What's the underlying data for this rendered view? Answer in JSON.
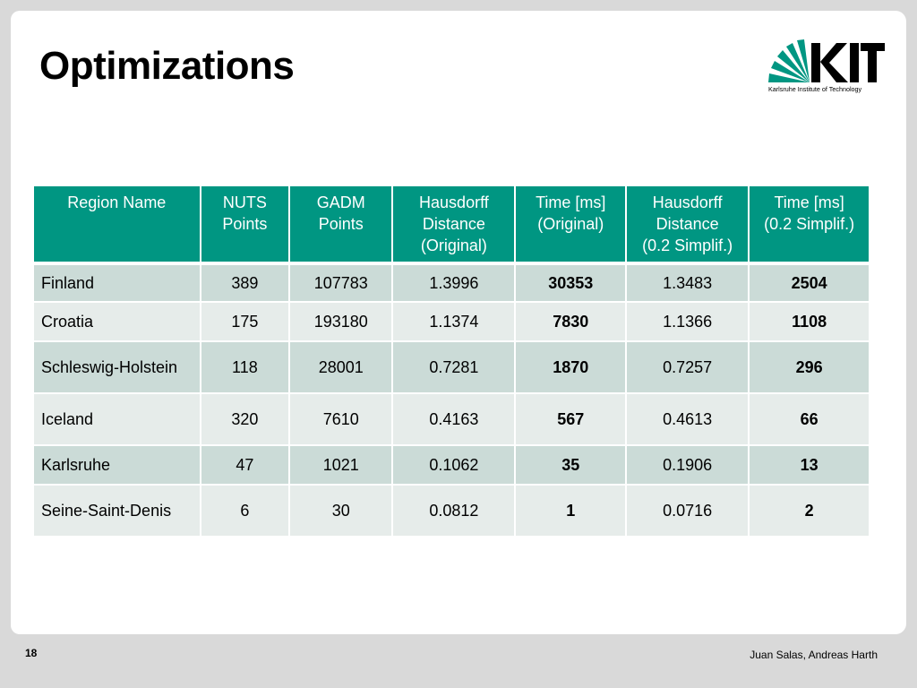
{
  "slide": {
    "title": "Optimizations",
    "page_number": "18",
    "authors": "Juan Salas, Andreas Harth"
  },
  "logo": {
    "text": "KIT",
    "subtitle": "Karlsruhe Institute of Technology",
    "color": "#009682"
  },
  "table": {
    "headers": [
      [
        "Region Name"
      ],
      [
        "NUTS",
        "Points"
      ],
      [
        "GADM",
        "Points"
      ],
      [
        "Hausdorff",
        "Distance",
        "(Original)"
      ],
      [
        "Time [ms]",
        "(Original)"
      ],
      [
        "Hausdorff",
        "Distance",
        "(0.2 Simplif.)"
      ],
      [
        "Time [ms]",
        "(0.2 Simplif.)"
      ]
    ],
    "rows": [
      [
        "Finland",
        "389",
        "107783",
        "1.3996",
        "30353",
        "1.3483",
        "2504"
      ],
      [
        "Croatia",
        "175",
        "193180",
        "1.1374",
        "7830",
        "1.1366",
        "1108"
      ],
      [
        "Schleswig-Holstein",
        "118",
        "28001",
        "0.7281",
        "1870",
        "0.7257",
        "296"
      ],
      [
        "Iceland",
        "320",
        "7610",
        "0.4163",
        "567",
        "0.4613",
        "66"
      ],
      [
        "Karlsruhe",
        "47",
        "1021",
        "0.1062",
        "35",
        "0.1906",
        "13"
      ],
      [
        "Seine-Saint-Denis",
        "6",
        "30",
        "0.0812",
        "1",
        "0.0716",
        "2"
      ]
    ]
  },
  "colors": {
    "header_bg": "#009682",
    "row_dark": "#cbdbd7",
    "row_light": "#e6ecea"
  }
}
